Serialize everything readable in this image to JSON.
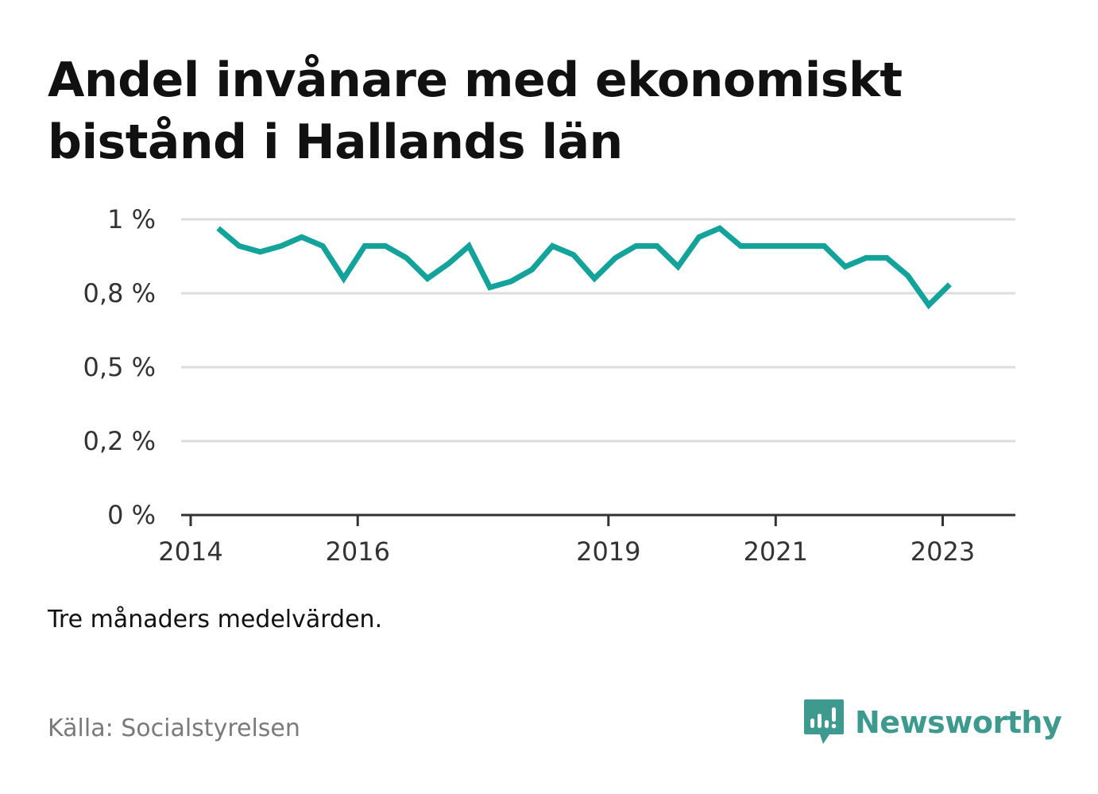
{
  "title": "Andel invånare med ekonomiskt bistånd i Hallands län",
  "note": "Tre månaders medelvärden.",
  "source": "Källa: Socialstyrelsen",
  "brand": {
    "name": "Newsworthy",
    "icon": "newsworthy-logo-icon",
    "color": "#3e9a8e"
  },
  "colors": {
    "line": "#14a39a",
    "grid": "#dddddd",
    "axis": "#333333"
  },
  "chart_data": {
    "type": "line",
    "title": "Andel invånare med ekonomiskt bistånd i Hallands län",
    "xlabel": "",
    "ylabel": "",
    "grid": true,
    "y_ticks": [
      {
        "value": 0,
        "label": "0 %"
      },
      {
        "value": 0.25,
        "label": "0,2 %"
      },
      {
        "value": 0.5,
        "label": "0,5 %"
      },
      {
        "value": 0.75,
        "label": "0,8 %"
      },
      {
        "value": 1.0,
        "label": "1 %"
      }
    ],
    "ylim": [
      0,
      1.0
    ],
    "xlim": [
      "2014-01-01",
      "2023-06-01"
    ],
    "x_ticks": [
      {
        "value": "2014-01-01",
        "label": "2014"
      },
      {
        "value": "2016-01-01",
        "label": "2016"
      },
      {
        "value": "2019-01-01",
        "label": "2019"
      },
      {
        "value": "2021-01-01",
        "label": "2021"
      },
      {
        "value": "2023-01-01",
        "label": "2023"
      }
    ],
    "series": [
      {
        "x": [
          "2014-05-01",
          "2014-08-01",
          "2014-11-01",
          "2015-02-01",
          "2015-05-01",
          "2015-08-01",
          "2015-11-01",
          "2016-02-01",
          "2016-05-01",
          "2016-08-01",
          "2016-11-01",
          "2017-02-01",
          "2017-05-01",
          "2017-08-01",
          "2017-11-01",
          "2018-02-01",
          "2018-05-01",
          "2018-08-01",
          "2018-11-01",
          "2019-02-01",
          "2019-05-01",
          "2019-08-01",
          "2019-11-01",
          "2020-02-01",
          "2020-05-01",
          "2020-08-01",
          "2020-11-01",
          "2021-02-01",
          "2021-05-01",
          "2021-08-01",
          "2021-11-01",
          "2022-02-01",
          "2022-05-01",
          "2022-08-01",
          "2022-11-01",
          "2023-02-01"
        ],
        "values": [
          0.97,
          0.91,
          0.89,
          0.91,
          0.94,
          0.91,
          0.8,
          0.91,
          0.91,
          0.87,
          0.8,
          0.85,
          0.91,
          0.77,
          0.79,
          0.83,
          0.91,
          0.88,
          0.8,
          0.87,
          0.91,
          0.91,
          0.84,
          0.94,
          0.97,
          0.91,
          0.91,
          0.91,
          0.91,
          0.91,
          0.84,
          0.87,
          0.87,
          0.81,
          0.71,
          0.78
        ]
      }
    ]
  }
}
